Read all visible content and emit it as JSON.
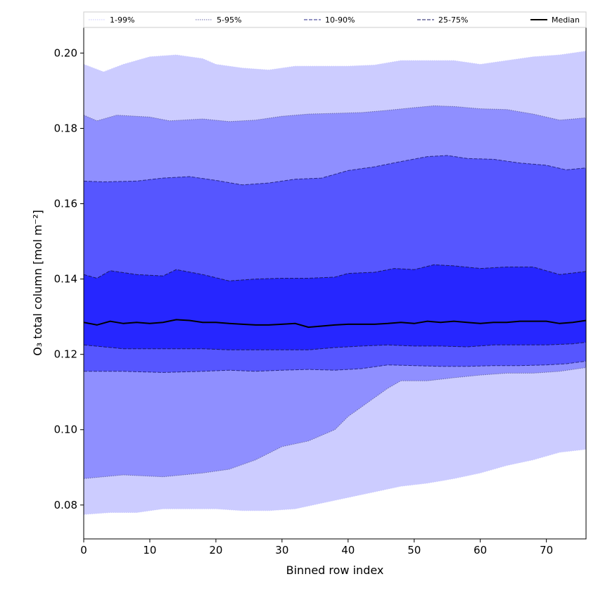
{
  "chart_data": {
    "type": "area",
    "title": "",
    "xlabel": "Binned row index",
    "ylabel": "O₃ total column [mol m⁻²]",
    "xlim": [
      0,
      76
    ],
    "ylim": [
      0.071,
      0.2068
    ],
    "xticks": [
      0,
      10,
      20,
      30,
      40,
      50,
      60,
      70
    ],
    "yticks": [
      0.08,
      0.1,
      0.12,
      0.14,
      0.16,
      0.18,
      0.2
    ],
    "ytick_labels": [
      "0.08",
      "0.10",
      "0.12",
      "0.14",
      "0.16",
      "0.18",
      "0.20"
    ],
    "legend_position": "top (above plot, full width)",
    "bands": [
      {
        "name": "1-99%",
        "color": "#ccccff",
        "line_color": "#c8c8ff",
        "line_style": "dotted",
        "upper": [
          [
            0,
            0.197
          ],
          [
            3,
            0.195
          ],
          [
            6,
            0.197
          ],
          [
            10,
            0.199
          ],
          [
            14,
            0.1995
          ],
          [
            18,
            0.1985
          ],
          [
            20,
            0.197
          ],
          [
            24,
            0.196
          ],
          [
            28,
            0.1955
          ],
          [
            32,
            0.1965
          ],
          [
            36,
            0.1965
          ],
          [
            40,
            0.1965
          ],
          [
            44,
            0.1968
          ],
          [
            48,
            0.198
          ],
          [
            52,
            0.198
          ],
          [
            56,
            0.198
          ],
          [
            60,
            0.197
          ],
          [
            64,
            0.198
          ],
          [
            68,
            0.199
          ],
          [
            72,
            0.1995
          ],
          [
            76,
            0.2005
          ]
        ],
        "lower": [
          [
            0,
            0.0775
          ],
          [
            4,
            0.078
          ],
          [
            8,
            0.078
          ],
          [
            12,
            0.079
          ],
          [
            16,
            0.079
          ],
          [
            20,
            0.079
          ],
          [
            24,
            0.0785
          ],
          [
            28,
            0.0785
          ],
          [
            32,
            0.079
          ],
          [
            36,
            0.0805
          ],
          [
            40,
            0.082
          ],
          [
            44,
            0.0835
          ],
          [
            48,
            0.085
          ],
          [
            52,
            0.0858
          ],
          [
            56,
            0.087
          ],
          [
            60,
            0.0885
          ],
          [
            64,
            0.0905
          ],
          [
            68,
            0.092
          ],
          [
            72,
            0.094
          ],
          [
            76,
            0.0948
          ]
        ]
      },
      {
        "name": "5-95%",
        "color": "#8f8fff",
        "line_color": "#6a6aa8",
        "line_style": "dotted",
        "upper": [
          [
            0,
            0.1835
          ],
          [
            2,
            0.182
          ],
          [
            5,
            0.1835
          ],
          [
            10,
            0.183
          ],
          [
            13,
            0.182
          ],
          [
            18,
            0.1825
          ],
          [
            22,
            0.1818
          ],
          [
            26,
            0.1822
          ],
          [
            30,
            0.1832
          ],
          [
            34,
            0.1838
          ],
          [
            38,
            0.184
          ],
          [
            42,
            0.1842
          ],
          [
            46,
            0.1848
          ],
          [
            50,
            0.1855
          ],
          [
            53,
            0.186
          ],
          [
            56,
            0.1858
          ],
          [
            60,
            0.1852
          ],
          [
            64,
            0.185
          ],
          [
            68,
            0.1838
          ],
          [
            72,
            0.1822
          ],
          [
            76,
            0.1828
          ]
        ],
        "lower": [
          [
            0,
            0.087
          ],
          [
            6,
            0.088
          ],
          [
            12,
            0.0875
          ],
          [
            18,
            0.0885
          ],
          [
            22,
            0.0895
          ],
          [
            26,
            0.092
          ],
          [
            30,
            0.0955
          ],
          [
            34,
            0.097
          ],
          [
            38,
            0.1
          ],
          [
            40,
            0.1035
          ],
          [
            42,
            0.106
          ],
          [
            44,
            0.1085
          ],
          [
            46,
            0.111
          ],
          [
            48,
            0.113
          ],
          [
            52,
            0.113
          ],
          [
            56,
            0.1138
          ],
          [
            60,
            0.1145
          ],
          [
            64,
            0.115
          ],
          [
            68,
            0.115
          ],
          [
            72,
            0.1155
          ],
          [
            76,
            0.1165
          ]
        ]
      },
      {
        "name": "10-90%",
        "color": "#5656ff",
        "line_color": "#2a2a88",
        "line_style": "dashed",
        "upper": [
          [
            0,
            0.166
          ],
          [
            3,
            0.1658
          ],
          [
            8,
            0.166
          ],
          [
            12,
            0.1668
          ],
          [
            16,
            0.1672
          ],
          [
            20,
            0.1662
          ],
          [
            24,
            0.165
          ],
          [
            28,
            0.1655
          ],
          [
            32,
            0.1665
          ],
          [
            36,
            0.1668
          ],
          [
            40,
            0.1688
          ],
          [
            44,
            0.1698
          ],
          [
            48,
            0.1712
          ],
          [
            52,
            0.1725
          ],
          [
            55,
            0.1728
          ],
          [
            58,
            0.172
          ],
          [
            62,
            0.1718
          ],
          [
            66,
            0.1708
          ],
          [
            70,
            0.1702
          ],
          [
            73,
            0.169
          ],
          [
            76,
            0.1695
          ]
        ],
        "lower": [
          [
            0,
            0.1155
          ],
          [
            6,
            0.1155
          ],
          [
            12,
            0.1152
          ],
          [
            18,
            0.1155
          ],
          [
            22,
            0.1158
          ],
          [
            26,
            0.1155
          ],
          [
            30,
            0.1158
          ],
          [
            34,
            0.116
          ],
          [
            38,
            0.1158
          ],
          [
            42,
            0.1162
          ],
          [
            46,
            0.1172
          ],
          [
            50,
            0.117
          ],
          [
            54,
            0.1168
          ],
          [
            58,
            0.1168
          ],
          [
            62,
            0.117
          ],
          [
            66,
            0.117
          ],
          [
            70,
            0.1172
          ],
          [
            73,
            0.1175
          ],
          [
            76,
            0.1182
          ]
        ]
      },
      {
        "name": "25-75%",
        "color": "#2626ff",
        "line_color": "#1a1a66",
        "line_style": "dashed",
        "upper": [
          [
            0,
            0.1412
          ],
          [
            2,
            0.1402
          ],
          [
            4,
            0.1422
          ],
          [
            8,
            0.1412
          ],
          [
            12,
            0.1408
          ],
          [
            14,
            0.1425
          ],
          [
            18,
            0.1412
          ],
          [
            22,
            0.1395
          ],
          [
            26,
            0.14
          ],
          [
            30,
            0.1402
          ],
          [
            34,
            0.1402
          ],
          [
            38,
            0.1405
          ],
          [
            40,
            0.1415
          ],
          [
            44,
            0.1418
          ],
          [
            47,
            0.1428
          ],
          [
            50,
            0.1425
          ],
          [
            53,
            0.1438
          ],
          [
            56,
            0.1435
          ],
          [
            60,
            0.1428
          ],
          [
            64,
            0.1432
          ],
          [
            68,
            0.1432
          ],
          [
            72,
            0.1412
          ],
          [
            76,
            0.142
          ]
        ],
        "lower": [
          [
            0,
            0.1225
          ],
          [
            6,
            0.1215
          ],
          [
            12,
            0.1215
          ],
          [
            18,
            0.1215
          ],
          [
            22,
            0.1212
          ],
          [
            26,
            0.1212
          ],
          [
            30,
            0.1212
          ],
          [
            34,
            0.1212
          ],
          [
            38,
            0.1218
          ],
          [
            42,
            0.1222
          ],
          [
            46,
            0.1225
          ],
          [
            50,
            0.1222
          ],
          [
            54,
            0.1222
          ],
          [
            58,
            0.122
          ],
          [
            62,
            0.1225
          ],
          [
            66,
            0.1225
          ],
          [
            70,
            0.1225
          ],
          [
            74,
            0.1228
          ],
          [
            76,
            0.1232
          ]
        ]
      }
    ],
    "median": {
      "name": "Median",
      "color": "#000000",
      "points": [
        [
          0,
          0.1285
        ],
        [
          2,
          0.1278
        ],
        [
          4,
          0.1288
        ],
        [
          6,
          0.1282
        ],
        [
          8,
          0.1285
        ],
        [
          10,
          0.1282
        ],
        [
          12,
          0.1285
        ],
        [
          14,
          0.1292
        ],
        [
          16,
          0.129
        ],
        [
          18,
          0.1285
        ],
        [
          20,
          0.1285
        ],
        [
          22,
          0.1282
        ],
        [
          24,
          0.128
        ],
        [
          26,
          0.1278
        ],
        [
          28,
          0.1278
        ],
        [
          30,
          0.128
        ],
        [
          32,
          0.1282
        ],
        [
          34,
          0.1272
        ],
        [
          36,
          0.1275
        ],
        [
          38,
          0.1278
        ],
        [
          40,
          0.128
        ],
        [
          42,
          0.128
        ],
        [
          44,
          0.128
        ],
        [
          46,
          0.1282
        ],
        [
          48,
          0.1285
        ],
        [
          50,
          0.1282
        ],
        [
          52,
          0.1288
        ],
        [
          54,
          0.1285
        ],
        [
          56,
          0.1288
        ],
        [
          58,
          0.1285
        ],
        [
          60,
          0.1282
        ],
        [
          62,
          0.1285
        ],
        [
          64,
          0.1285
        ],
        [
          66,
          0.1288
        ],
        [
          68,
          0.1288
        ],
        [
          70,
          0.1288
        ],
        [
          72,
          0.1282
        ],
        [
          74,
          0.1285
        ],
        [
          76,
          0.129
        ]
      ]
    }
  }
}
